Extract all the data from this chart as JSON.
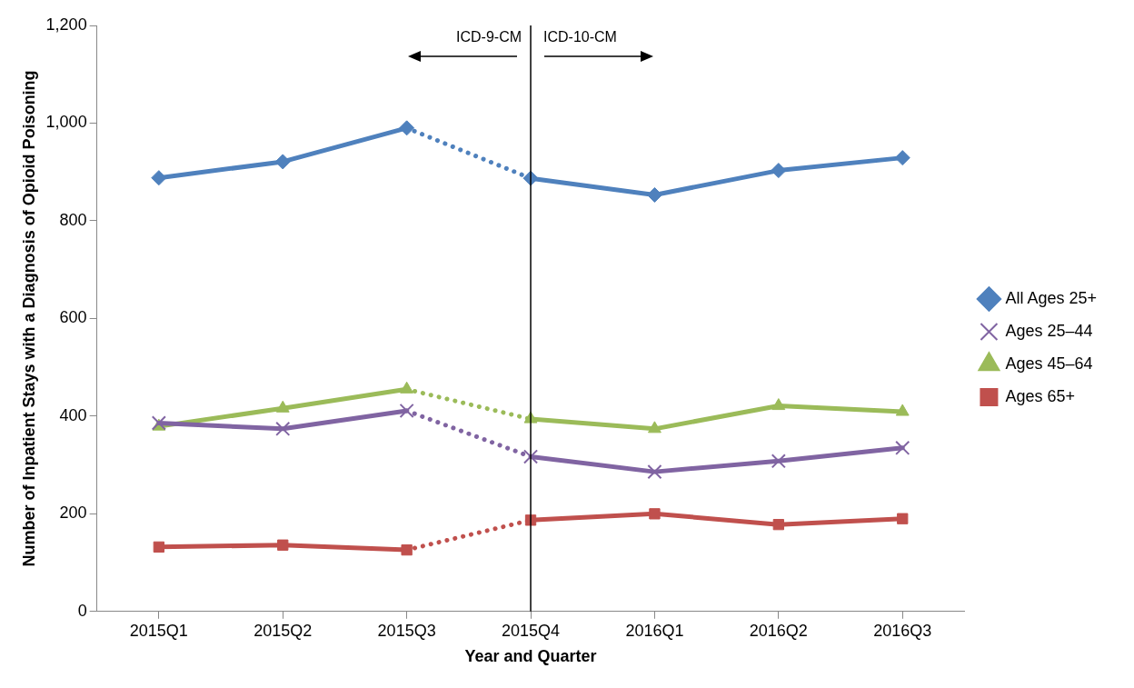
{
  "chart_data": {
    "type": "line",
    "xlabel": "Year and Quarter",
    "ylabel": "Number of Inpatient Stays with a Diagnosis of Opioid Poisoning",
    "categories": [
      "2015Q1",
      "2015Q2",
      "2015Q3",
      "2015Q4",
      "2016Q1",
      "2016Q2",
      "2016Q3"
    ],
    "series": [
      {
        "name": "All Ages 25+",
        "color": "#4f81bd",
        "marker": "diamond",
        "values": [
          888,
          921,
          990,
          887,
          853,
          903,
          929
        ]
      },
      {
        "name": "Ages 25–44",
        "color": "#8064a2",
        "marker": "cross",
        "values": [
          386,
          374,
          411,
          317,
          286,
          308,
          335
        ]
      },
      {
        "name": "Ages 45–64",
        "color": "#9bbb59",
        "marker": "triangle",
        "values": [
          379,
          416,
          455,
          394,
          374,
          421,
          409
        ]
      },
      {
        "name": "Ages 65+",
        "color": "#c0504d",
        "marker": "square",
        "values": [
          132,
          136,
          126,
          187,
          200,
          178,
          190
        ]
      }
    ],
    "ylim": [
      0,
      1200
    ],
    "yticks": [
      0,
      200,
      400,
      600,
      800,
      {
        "value": 1000,
        "label": "1,000"
      },
      {
        "value": 1200,
        "label": "1,200"
      }
    ],
    "ref_lines": [
      {
        "axis": "x",
        "value": "2015Q4",
        "color": "#000000"
      }
    ],
    "annotations": [
      "ICD-9-CM",
      "ICD-10-CM"
    ],
    "grid": false,
    "legend": "right",
    "line_style": "solid"
  }
}
